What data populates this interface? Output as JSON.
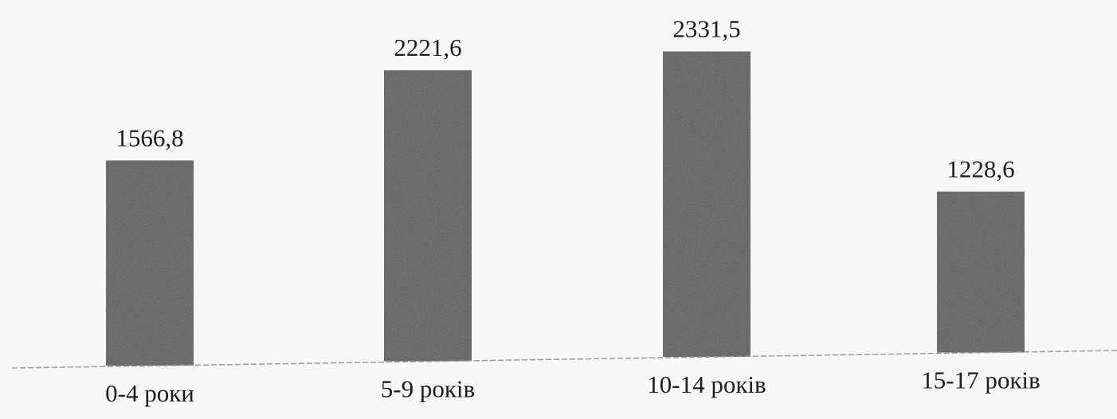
{
  "chart_data": {
    "type": "bar",
    "categories": [
      "0-4 роки",
      "5-9 років",
      "10-14 років",
      "15-17 років"
    ],
    "values": [
      1566.8,
      2221.6,
      2331.5,
      1228.6
    ],
    "value_labels": [
      "1566,8",
      "2221,6",
      "2331,5",
      "1228,6"
    ],
    "title": "",
    "xlabel": "",
    "ylabel": "",
    "ylim": [
      0,
      2331.5
    ],
    "grid": false,
    "legend": "none",
    "y_axis_visible": false,
    "bar_color": "#7c7c7c",
    "axis_color": "#9a9a9a",
    "text_color": "#1c1c1c"
  }
}
